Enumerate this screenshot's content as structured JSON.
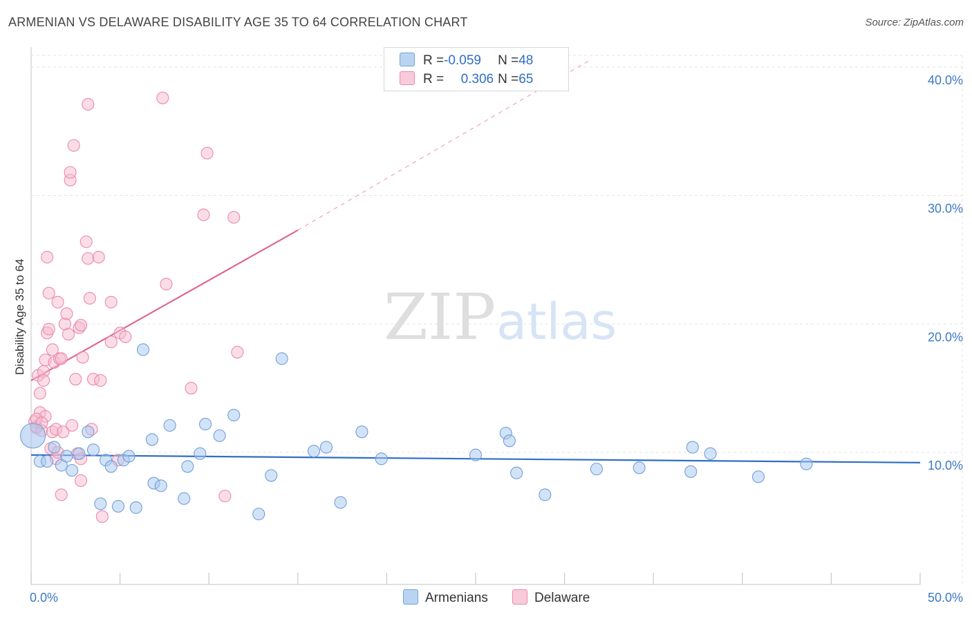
{
  "header": {
    "title": "ARMENIAN VS DELAWARE DISABILITY AGE 35 TO 64 CORRELATION CHART",
    "source": "Source: ZipAtlas.com"
  },
  "legend": {
    "series": [
      {
        "r_label": "R = ",
        "r_value": "-0.059",
        "n_label": "N = ",
        "n_value": "48"
      },
      {
        "r_label": "R = ",
        "r_value": "0.306",
        "n_label": "N = ",
        "n_value": "65"
      }
    ]
  },
  "watermark": {
    "part1": "ZIP",
    "part2": "atlas"
  },
  "colors": {
    "armenians_fill": "#a8c8ef",
    "armenians_stroke": "#6f9fd8",
    "armenians_line": "#2f6ec7",
    "delaware_fill": "#f7bcd0",
    "delaware_stroke": "#e98aab",
    "delaware_line": "#e0668f",
    "tick_label": "#3c78c8",
    "grid": "#e3e3e3"
  },
  "chart_data": {
    "type": "scatter",
    "title": "ARMENIAN VS DELAWARE DISABILITY AGE 35 TO 64 CORRELATION CHART",
    "xlabel": "",
    "ylabel": "Disability Age 35 to 64",
    "xlim": [
      0,
      50
    ],
    "ylim": [
      1,
      42
    ],
    "x_tick_labels": [
      {
        "value": 0,
        "label": "0.0%"
      },
      {
        "value": 50,
        "label": "50.0%"
      }
    ],
    "y_tick_labels": [
      {
        "value": 10,
        "label": "10.0%"
      },
      {
        "value": 20,
        "label": "20.0%"
      },
      {
        "value": 30,
        "label": "30.0%"
      },
      {
        "value": 40,
        "label": "40.0%"
      }
    ],
    "x_minor_ticks": [
      0,
      5,
      10,
      15,
      20,
      25,
      30,
      35,
      40,
      45,
      50
    ],
    "series": [
      {
        "name": "Armenians",
        "r": -0.059,
        "n": 48,
        "trend": {
          "x": [
            0,
            50
          ],
          "y": [
            9.8,
            9.2
          ]
        },
        "points": [
          [
            0.5,
            9.3
          ],
          [
            0.9,
            9.3
          ],
          [
            1.3,
            10.4
          ],
          [
            1.7,
            9.0
          ],
          [
            2.0,
            9.7
          ],
          [
            2.3,
            8.6
          ],
          [
            2.7,
            9.9
          ],
          [
            3.2,
            11.6
          ],
          [
            3.5,
            10.2
          ],
          [
            3.9,
            6.0
          ],
          [
            4.2,
            9.4
          ],
          [
            4.5,
            8.9
          ],
          [
            4.9,
            5.8
          ],
          [
            5.2,
            9.4
          ],
          [
            5.5,
            9.7
          ],
          [
            5.9,
            5.7
          ],
          [
            6.3,
            18.0
          ],
          [
            6.8,
            11.0
          ],
          [
            6.9,
            7.6
          ],
          [
            7.3,
            7.4
          ],
          [
            7.8,
            12.1
          ],
          [
            8.6,
            6.4
          ],
          [
            8.8,
            8.9
          ],
          [
            9.5,
            9.9
          ],
          [
            9.8,
            12.2
          ],
          [
            10.6,
            11.3
          ],
          [
            11.4,
            12.9
          ],
          [
            12.8,
            5.2
          ],
          [
            13.5,
            8.2
          ],
          [
            14.1,
            17.3
          ],
          [
            15.9,
            10.1
          ],
          [
            16.6,
            10.4
          ],
          [
            17.4,
            6.1
          ],
          [
            18.6,
            11.6
          ],
          [
            19.7,
            9.5
          ],
          [
            25.0,
            9.8
          ],
          [
            26.7,
            11.5
          ],
          [
            26.9,
            10.9
          ],
          [
            27.3,
            8.4
          ],
          [
            28.9,
            6.7
          ],
          [
            31.8,
            8.7
          ],
          [
            34.2,
            8.8
          ],
          [
            37.1,
            8.5
          ],
          [
            37.2,
            10.4
          ],
          [
            38.2,
            9.9
          ],
          [
            40.9,
            8.1
          ],
          [
            43.6,
            9.1
          ],
          [
            0.1,
            11.3
          ]
        ]
      },
      {
        "name": "Delaware",
        "r": 0.306,
        "n": 65,
        "trend": {
          "x": [
            0,
            15
          ],
          "y": [
            15.6,
            27.3
          ]
        },
        "trend_extension": {
          "x": [
            15,
            31.5
          ],
          "y": [
            27.3,
            40.6
          ]
        },
        "points": [
          [
            0.2,
            12.4
          ],
          [
            0.3,
            11.9
          ],
          [
            0.3,
            12.0
          ],
          [
            0.4,
            16.0
          ],
          [
            0.5,
            13.1
          ],
          [
            0.5,
            14.6
          ],
          [
            0.6,
            11.7
          ],
          [
            0.7,
            16.3
          ],
          [
            0.7,
            15.6
          ],
          [
            0.8,
            12.8
          ],
          [
            0.8,
            17.2
          ],
          [
            0.9,
            19.3
          ],
          [
            0.9,
            25.2
          ],
          [
            1.0,
            22.4
          ],
          [
            1.0,
            19.6
          ],
          [
            1.1,
            10.3
          ],
          [
            1.2,
            11.6
          ],
          [
            1.2,
            18.0
          ],
          [
            1.3,
            17.0
          ],
          [
            1.4,
            9.5
          ],
          [
            1.4,
            11.8
          ],
          [
            1.5,
            21.7
          ],
          [
            1.6,
            17.3
          ],
          [
            1.7,
            17.3
          ],
          [
            1.7,
            6.7
          ],
          [
            1.8,
            11.6
          ],
          [
            1.9,
            20.0
          ],
          [
            2.0,
            20.8
          ],
          [
            2.1,
            19.2
          ],
          [
            2.2,
            31.2
          ],
          [
            2.2,
            31.8
          ],
          [
            2.3,
            12.1
          ],
          [
            2.4,
            33.9
          ],
          [
            2.5,
            15.7
          ],
          [
            2.6,
            9.9
          ],
          [
            2.7,
            19.7
          ],
          [
            2.8,
            19.9
          ],
          [
            2.8,
            7.8
          ],
          [
            2.8,
            9.5
          ],
          [
            2.9,
            17.4
          ],
          [
            3.1,
            26.4
          ],
          [
            3.2,
            37.1
          ],
          [
            3.2,
            25.1
          ],
          [
            3.3,
            22.0
          ],
          [
            3.4,
            11.8
          ],
          [
            3.5,
            15.7
          ],
          [
            3.8,
            25.2
          ],
          [
            3.9,
            15.6
          ],
          [
            4.0,
            5.0
          ],
          [
            4.5,
            18.6
          ],
          [
            4.5,
            21.7
          ],
          [
            4.9,
            9.4
          ],
          [
            5.0,
            19.3
          ],
          [
            5.3,
            19.0
          ],
          [
            7.4,
            37.6
          ],
          [
            7.6,
            23.1
          ],
          [
            9.0,
            15.0
          ],
          [
            9.7,
            28.5
          ],
          [
            9.9,
            33.3
          ],
          [
            10.9,
            6.6
          ],
          [
            11.4,
            28.3
          ],
          [
            11.6,
            17.8
          ],
          [
            0.3,
            12.6
          ],
          [
            1.5,
            10.0
          ],
          [
            0.6,
            12.3
          ]
        ]
      }
    ]
  }
}
